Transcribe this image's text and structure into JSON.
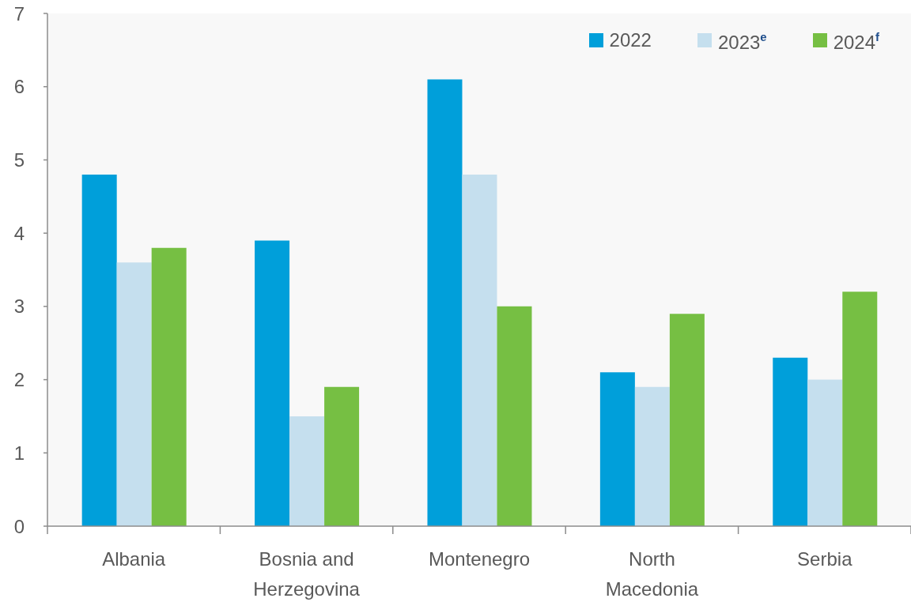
{
  "chart_data": {
    "type": "bar",
    "categories": [
      "Albania",
      "Bosnia and Herzegovina",
      "Montenegro",
      "North Macedonia",
      "Serbia"
    ],
    "series": [
      {
        "name": "2022",
        "color": "#009fda",
        "values": [
          4.8,
          3.9,
          6.1,
          2.1,
          2.3
        ]
      },
      {
        "name": "2023$^{e}$",
        "color": "#c5dfee",
        "values": [
          3.6,
          1.5,
          4.8,
          1.9,
          2.0
        ]
      },
      {
        "name": "2024$^{f}$",
        "color": "#76bf43",
        "values": [
          3.8,
          1.9,
          3.0,
          2.9,
          3.2
        ]
      }
    ],
    "ylim": [
      0,
      7
    ],
    "yticks": [
      0,
      1,
      2,
      3,
      4,
      5,
      6,
      7
    ],
    "legend": "top right"
  }
}
